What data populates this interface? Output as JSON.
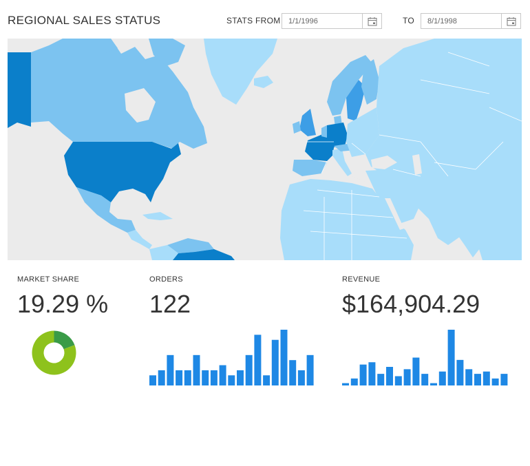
{
  "header": {
    "title": "REGIONAL SALES STATUS",
    "stats_from_label": "STATS FROM",
    "from_value": "1/1/1996",
    "to_label": "TO",
    "to_value": "8/1/1998"
  },
  "colors": {
    "accent": "#1e88e5",
    "map_dark": "#0b7fca",
    "map_medium": "#3d9ee6",
    "map_light": "#7cc3f0",
    "map_lighter": "#a8ddfa",
    "donut_share": "#3a9b47",
    "donut_rest": "#8ec21c"
  },
  "stats": {
    "market_share": {
      "label": "MARKET SHARE",
      "value": "19.29 %",
      "fraction": 0.1929
    },
    "orders": {
      "label": "ORDERS",
      "value": "122"
    },
    "revenue": {
      "label": "REVENUE",
      "value": "$164,904.29"
    }
  },
  "chart_data": [
    {
      "type": "pie",
      "slices": [
        0.1929,
        0.8071
      ]
    },
    {
      "type": "bar",
      "values": [
        2,
        3,
        6,
        3,
        3,
        6,
        3,
        3,
        4,
        2,
        3,
        6,
        10,
        2,
        9,
        11,
        5,
        3,
        6
      ]
    },
    {
      "type": "bar",
      "values": [
        1,
        3,
        9,
        10,
        5,
        8,
        4,
        7,
        12,
        5,
        1,
        6,
        24,
        11,
        7,
        5,
        6,
        3,
        5
      ]
    }
  ]
}
